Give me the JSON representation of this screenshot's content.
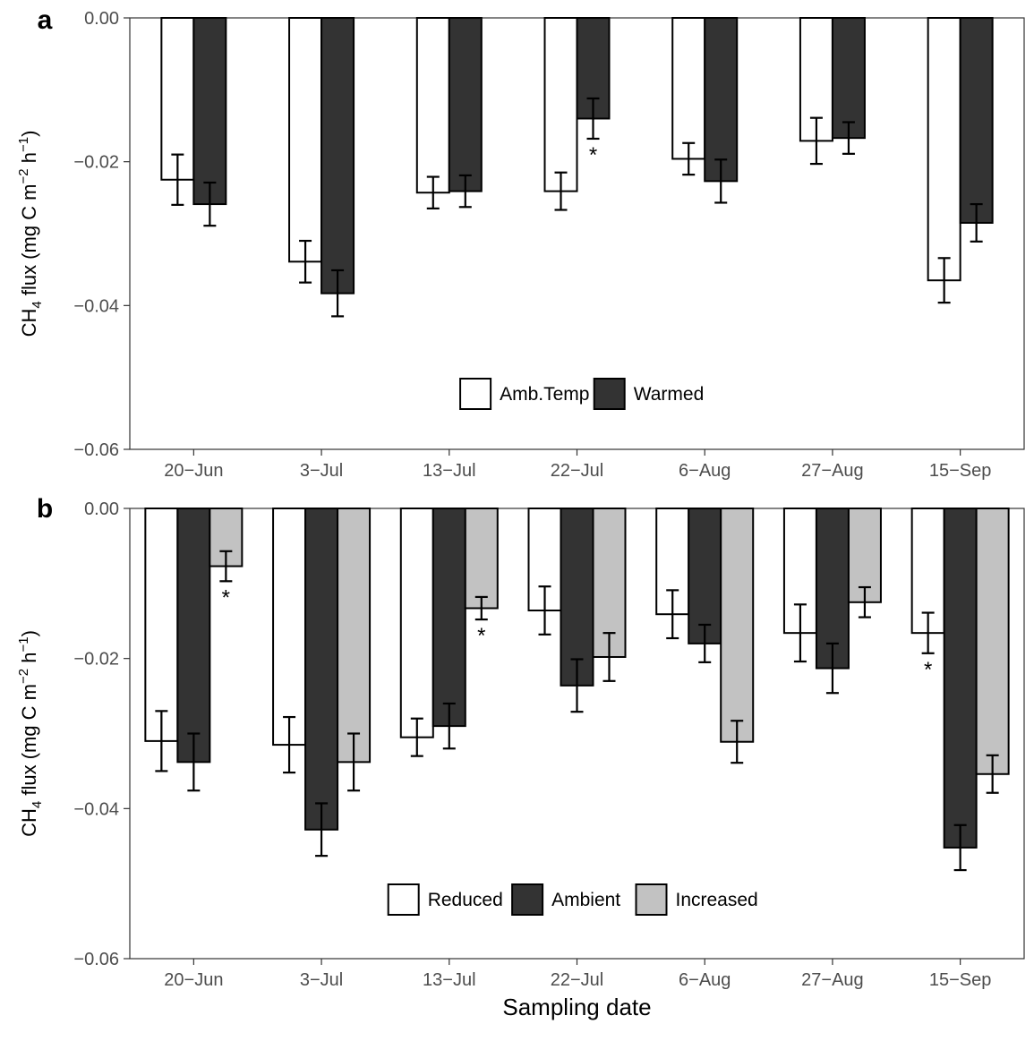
{
  "chart_data": [
    {
      "panel": "a",
      "type": "bar",
      "categories": [
        "20−Jun",
        "3−Jul",
        "13−Jul",
        "22−Jul",
        "6−Aug",
        "27−Aug",
        "15−Sep"
      ],
      "series": [
        {
          "name": "Amb.Temp",
          "color": "#ffffff",
          "values": [
            -0.0225,
            -0.0339,
            -0.0243,
            -0.0241,
            -0.0196,
            -0.0171,
            -0.0365
          ],
          "errors": [
            0.0035,
            0.0029,
            0.0022,
            0.0026,
            0.0022,
            0.0032,
            0.0031
          ]
        },
        {
          "name": "Warmed",
          "color": "#333333",
          "values": [
            -0.0259,
            -0.0383,
            -0.0241,
            -0.014,
            -0.0227,
            -0.0167,
            -0.0285
          ],
          "errors": [
            0.003,
            0.0032,
            0.0022,
            0.0028,
            0.003,
            0.0022,
            0.0026
          ]
        }
      ],
      "significance": [
        {
          "category": "22−Jul",
          "series": "Warmed",
          "label": "*"
        }
      ],
      "ylabel": "CH",
      "ylabel_sub": "4",
      "ylabel_unit": " flux (mg C m",
      "ylabel_sup1": "−2",
      "ylabel_mid": " h",
      "ylabel_sup2": "−1",
      "ylabel_end": ")",
      "ylim": [
        -0.06,
        0.0
      ],
      "yticks": [
        0.0,
        -0.02,
        -0.04,
        -0.06
      ],
      "ytick_labels": [
        "0.00",
        "−0.02",
        "−0.04",
        "−0.06"
      ],
      "legend_position": "bottom-center",
      "panel_letter": "a"
    },
    {
      "panel": "b",
      "type": "bar",
      "categories": [
        "20−Jun",
        "3−Jul",
        "13−Jul",
        "22−Jul",
        "6−Aug",
        "27−Aug",
        "15−Sep"
      ],
      "series": [
        {
          "name": "Reduced",
          "color": "#ffffff",
          "values": [
            -0.031,
            -0.0315,
            -0.0305,
            -0.0136,
            -0.0141,
            -0.0166,
            -0.0166
          ],
          "errors": [
            0.004,
            0.0037,
            0.0025,
            0.0032,
            0.0032,
            0.0038,
            0.0027
          ]
        },
        {
          "name": "Ambient",
          "color": "#333333",
          "values": [
            -0.0338,
            -0.0428,
            -0.029,
            -0.0236,
            -0.018,
            -0.0213,
            -0.0452
          ],
          "errors": [
            0.0038,
            0.0035,
            0.003,
            0.0035,
            0.0025,
            0.0033,
            0.003
          ]
        },
        {
          "name": "Increased",
          "color": "#c2c2c2",
          "values": [
            -0.0077,
            -0.0338,
            -0.0133,
            -0.0198,
            -0.0311,
            -0.0125,
            -0.0354
          ],
          "errors": [
            0.002,
            0.0038,
            0.0015,
            0.0032,
            0.0028,
            0.002,
            0.0025
          ]
        }
      ],
      "significance": [
        {
          "category": "20−Jun",
          "series": "Increased",
          "label": "*"
        },
        {
          "category": "13−Jul",
          "series": "Increased",
          "label": "*"
        },
        {
          "category": "15−Sep",
          "series": "Reduced",
          "label": "*"
        }
      ],
      "ylabel": "CH",
      "ylabel_sub": "4",
      "ylabel_unit": " flux (mg C m",
      "ylabel_sup1": "−2",
      "ylabel_mid": " h",
      "ylabel_sup2": "−1",
      "ylabel_end": ")",
      "xlabel": "Sampling date",
      "ylim": [
        -0.06,
        0.0
      ],
      "yticks": [
        0.0,
        -0.02,
        -0.04,
        -0.06
      ],
      "ytick_labels": [
        "0.00",
        "−0.02",
        "−0.04",
        "−0.06"
      ],
      "legend_position": "bottom-center",
      "panel_letter": "b"
    }
  ]
}
